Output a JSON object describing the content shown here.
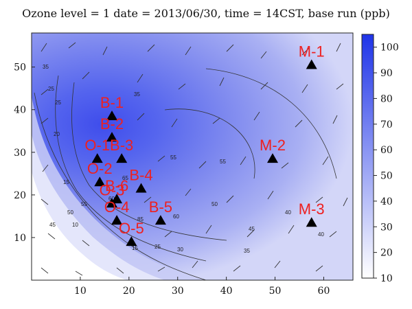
{
  "title": "Ozone level = 1 date = 2013/06/30, time = 14CST, base run (ppb)",
  "map": {
    "x_range": [
      0,
      66
    ],
    "y_range": [
      0,
      58
    ],
    "x_ticks": [
      "10",
      "20",
      "30",
      "40",
      "50",
      "60"
    ],
    "x_tick_values": [
      10,
      20,
      30,
      40,
      50,
      60
    ],
    "y_ticks": [
      "10",
      "20",
      "30",
      "40",
      "50"
    ],
    "y_tick_values": [
      10,
      20,
      30,
      40,
      50
    ],
    "colors": {
      "high": "#1f34e8",
      "low": "#ffffff",
      "label": "#ee2020"
    },
    "stations": [
      {
        "name": "M-1",
        "x": 57.5,
        "y": 50.5
      },
      {
        "name": "B-1",
        "x": 16.5,
        "y": 38.5
      },
      {
        "name": "B-2",
        "x": 16.5,
        "y": 33.5
      },
      {
        "name": "O-1",
        "x": 13.5,
        "y": 28.5
      },
      {
        "name": "B-3",
        "x": 18.5,
        "y": 28.5
      },
      {
        "name": "M-2",
        "x": 49.5,
        "y": 28.5
      },
      {
        "name": "O-2",
        "x": 14.0,
        "y": 23.0
      },
      {
        "name": "B-4",
        "x": 22.5,
        "y": 21.5
      },
      {
        "name": "B-6",
        "x": 17.5,
        "y": 19.0
      },
      {
        "name": "O-3",
        "x": 16.5,
        "y": 18.0
      },
      {
        "name": "O-4",
        "x": 17.5,
        "y": 14.0
      },
      {
        "name": "B-5",
        "x": 26.5,
        "y": 14.0
      },
      {
        "name": "M-3",
        "x": 57.5,
        "y": 13.5
      },
      {
        "name": "O-5",
        "x": 20.5,
        "y": 9.0
      }
    ],
    "contour_labels": [
      "35",
      "25",
      "20",
      "15",
      "10",
      "45",
      "50",
      "55",
      "60",
      "65",
      "85",
      "60",
      "50",
      "45",
      "40",
      "25",
      "30",
      "35",
      "40",
      "55",
      "35",
      "55",
      "25",
      "15"
    ]
  },
  "colorbar": {
    "min": 10,
    "max": 105,
    "ticks": [
      "10",
      "20",
      "30",
      "40",
      "50",
      "60",
      "70",
      "80",
      "90",
      "100"
    ],
    "tick_values": [
      10,
      20,
      30,
      40,
      50,
      60,
      70,
      80,
      90,
      100
    ]
  }
}
